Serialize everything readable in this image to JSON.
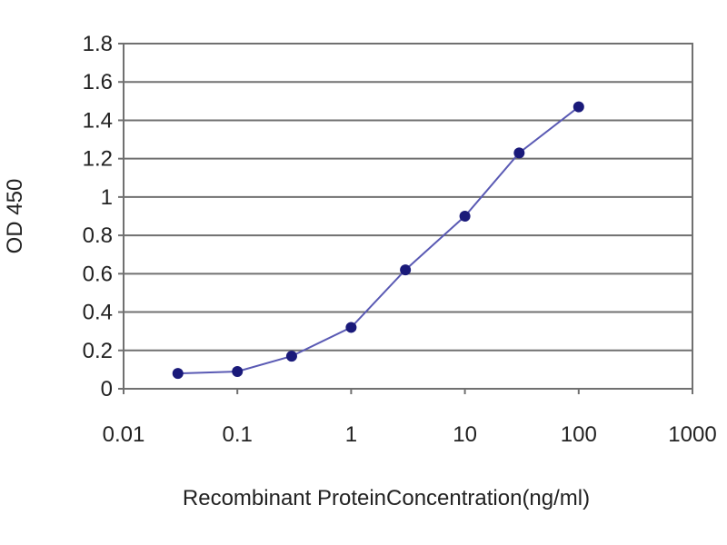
{
  "chart_data": {
    "type": "line",
    "title": "",
    "xlabel": "Recombinant ProteinConcentration(ng/ml)",
    "ylabel": "OD 450",
    "x_scale": "log",
    "xlim": [
      0.01,
      1000
    ],
    "ylim": [
      0,
      1.8
    ],
    "x_ticks": [
      "0.01",
      "0.1",
      "1",
      "10",
      "100",
      "1000"
    ],
    "y_ticks": [
      "0",
      "0.2",
      "0.4",
      "0.6",
      "0.8",
      "1",
      "1.2",
      "1.4",
      "1.6",
      "1.8"
    ],
    "grid": "horizontal",
    "legend": "none",
    "series": [
      {
        "x": [
          0.03,
          0.1,
          0.3,
          1,
          3,
          10,
          30,
          100
        ],
        "y": [
          0.08,
          0.09,
          0.17,
          0.32,
          0.62,
          0.9,
          1.23,
          1.47
        ]
      }
    ],
    "colors": {
      "line": "#5a5ab4",
      "marker": "#1a1a7a",
      "grid": "#707070",
      "axis": "#707070"
    }
  }
}
